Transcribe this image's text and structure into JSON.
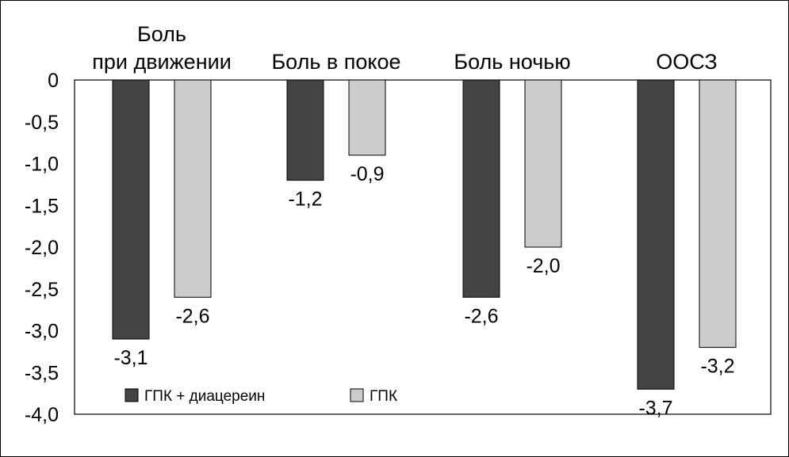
{
  "chart_data": {
    "type": "bar",
    "categories": [
      [
        "Боль",
        "при движении"
      ],
      [
        "Боль в покое"
      ],
      [
        "Боль ночью"
      ],
      [
        "ООСЗ"
      ]
    ],
    "series": [
      {
        "name": "ГПК + диацереин",
        "values": [
          -3.1,
          -1.2,
          -2.6,
          -3.7
        ],
        "labels": [
          "-3,1",
          "-1,2",
          "-2,6",
          "-3,7"
        ],
        "color": "#444444"
      },
      {
        "name": "ГПК",
        "values": [
          -2.6,
          -0.9,
          -2.0,
          -3.2
        ],
        "labels": [
          "-2,6",
          "-0,9",
          "-2,0",
          "-3,2"
        ],
        "color": "#cccccc"
      }
    ],
    "ylim": [
      -4.0,
      0
    ],
    "yticks": [
      0,
      -0.5,
      -1.0,
      -1.5,
      -2.0,
      -2.5,
      -3.0,
      -3.5,
      -4.0
    ],
    "ytick_labels": [
      "0",
      "-0,5",
      "-1,0",
      "-1,5",
      "-2,0",
      "-2,5",
      "-3,0",
      "-3,5",
      "-4,0"
    ],
    "grid": false,
    "legend_position": "bottom-left",
    "category_label_position": "top"
  }
}
